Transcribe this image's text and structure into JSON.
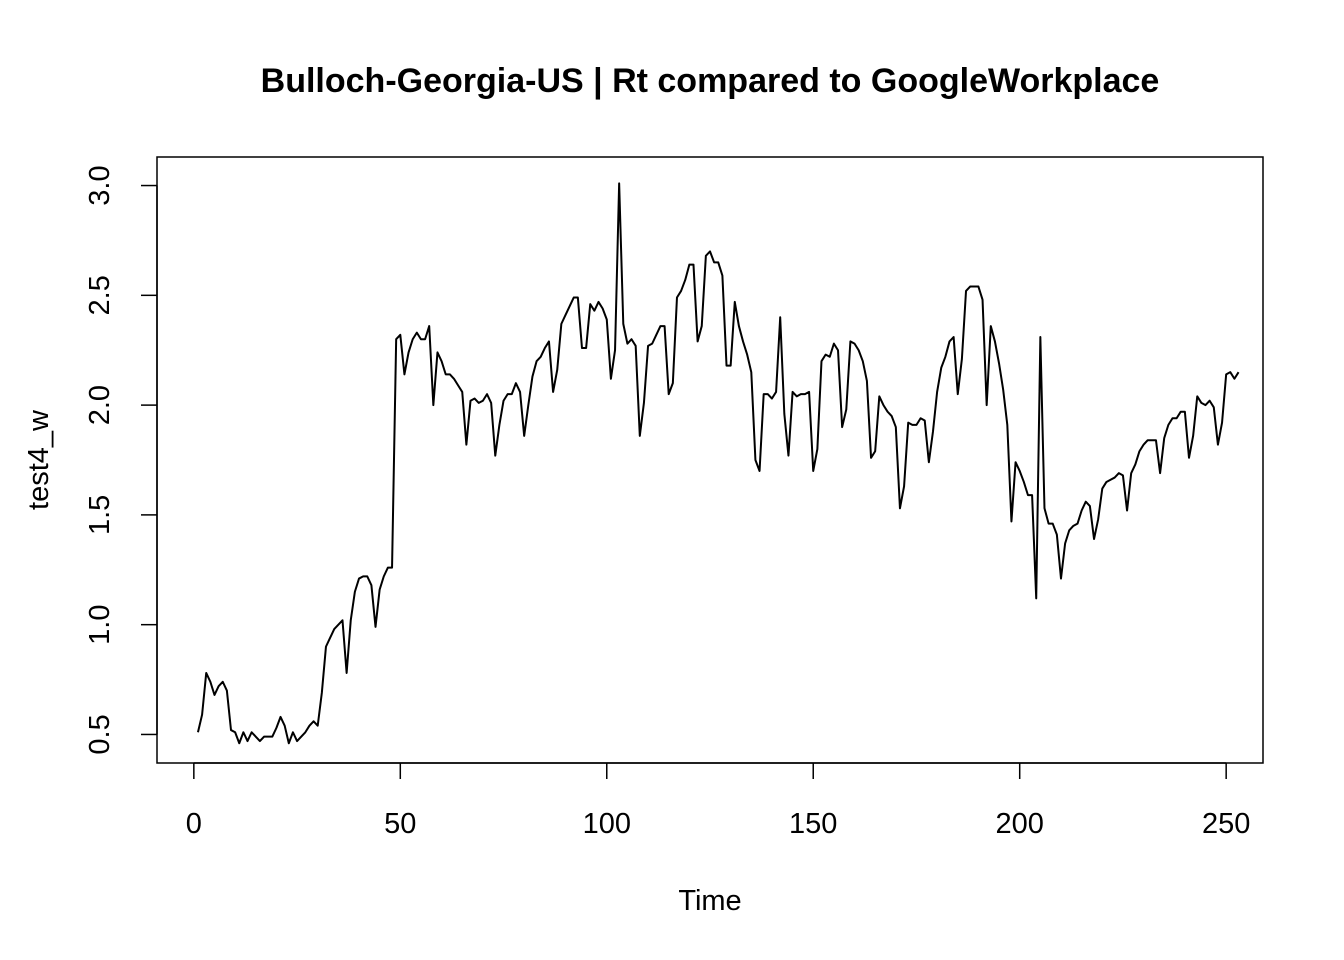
{
  "chart_data": {
    "type": "line",
    "title": "Bulloch-Georgia-US | Rt compared to GoogleWorkplace",
    "xlabel": "Time",
    "ylabel": "test4_w",
    "xlim": [
      -8.92,
      258.92
    ],
    "ylim": [
      0.37,
      3.13
    ],
    "x_ticks": [
      0,
      50,
      100,
      150,
      200,
      250
    ],
    "y_ticks": [
      0.5,
      1.0,
      1.5,
      2.0,
      2.5,
      3.0
    ],
    "x_tick_labels": [
      "0",
      "50",
      "100",
      "150",
      "200",
      "250"
    ],
    "y_tick_labels": [
      "0.5",
      "1.0",
      "1.5",
      "2.0",
      "2.5",
      "3.0"
    ],
    "grid": false,
    "line_color": "#000000",
    "series": [
      {
        "x_start": 1,
        "values": [
          0.51,
          0.59,
          0.78,
          0.74,
          0.68,
          0.72,
          0.74,
          0.7,
          0.52,
          0.51,
          0.46,
          0.51,
          0.47,
          0.51,
          0.49,
          0.47,
          0.49,
          0.49,
          0.49,
          0.53,
          0.58,
          0.54,
          0.46,
          0.51,
          0.47,
          0.49,
          0.51,
          0.54,
          0.56,
          0.54,
          0.69,
          0.9,
          0.94,
          0.98,
          1.0,
          1.02,
          0.78,
          1.02,
          1.15,
          1.21,
          1.22,
          1.22,
          1.18,
          0.99,
          1.16,
          1.22,
          1.26,
          1.26,
          2.3,
          2.32,
          2.14,
          2.24,
          2.3,
          2.33,
          2.3,
          2.3,
          2.36,
          2.0,
          2.24,
          2.2,
          2.14,
          2.14,
          2.12,
          2.09,
          2.06,
          1.82,
          2.02,
          2.03,
          2.01,
          2.02,
          2.05,
          2.01,
          1.77,
          1.91,
          2.02,
          2.05,
          2.05,
          2.1,
          2.06,
          1.86,
          2.0,
          2.13,
          2.2,
          2.22,
          2.26,
          2.29,
          2.06,
          2.16,
          2.37,
          2.41,
          2.45,
          2.49,
          2.49,
          2.26,
          2.26,
          2.46,
          2.43,
          2.47,
          2.44,
          2.39,
          2.12,
          2.25,
          3.01,
          2.37,
          2.28,
          2.3,
          2.27,
          1.86,
          2.01,
          2.27,
          2.28,
          2.32,
          2.36,
          2.36,
          2.05,
          2.1,
          2.49,
          2.52,
          2.57,
          2.64,
          2.64,
          2.29,
          2.36,
          2.68,
          2.7,
          2.65,
          2.65,
          2.59,
          2.18,
          2.18,
          2.47,
          2.36,
          2.29,
          2.23,
          2.15,
          1.75,
          1.7,
          2.05,
          2.05,
          2.03,
          2.06,
          2.4,
          1.96,
          1.77,
          2.06,
          2.04,
          2.05,
          2.05,
          2.06,
          1.7,
          1.8,
          2.2,
          2.23,
          2.22,
          2.28,
          2.25,
          1.9,
          1.98,
          2.29,
          2.28,
          2.25,
          2.2,
          2.11,
          1.76,
          1.79,
          2.04,
          2.0,
          1.97,
          1.95,
          1.9,
          1.53,
          1.63,
          1.92,
          1.91,
          1.91,
          1.94,
          1.93,
          1.74,
          1.88,
          2.06,
          2.17,
          2.22,
          2.29,
          2.31,
          2.05,
          2.21,
          2.52,
          2.54,
          2.54,
          2.54,
          2.48,
          2.0,
          2.36,
          2.29,
          2.19,
          2.07,
          1.91,
          1.47,
          1.74,
          1.7,
          1.65,
          1.59,
          1.59,
          1.12,
          2.31,
          1.53,
          1.46,
          1.46,
          1.41,
          1.21,
          1.37,
          1.43,
          1.45,
          1.46,
          1.52,
          1.56,
          1.54,
          1.39,
          1.48,
          1.62,
          1.65,
          1.66,
          1.67,
          1.69,
          1.68,
          1.52,
          1.69,
          1.73,
          1.79,
          1.82,
          1.84,
          1.84,
          1.84,
          1.69,
          1.85,
          1.91,
          1.94,
          1.94,
          1.97,
          1.97,
          1.76,
          1.86,
          2.04,
          2.01,
          2.0,
          2.02,
          1.99,
          1.82,
          1.92,
          2.14,
          2.15,
          2.12,
          2.15
        ]
      }
    ]
  }
}
